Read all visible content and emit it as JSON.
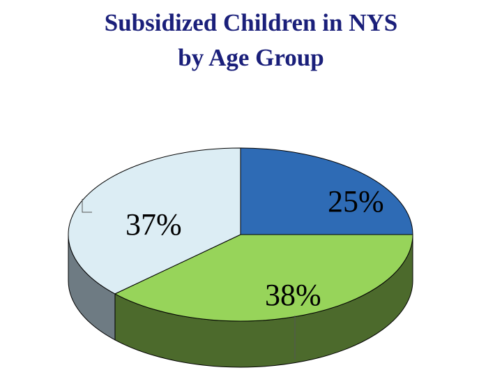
{
  "chart_data": {
    "type": "pie",
    "title": [
      "Subsidized Children in NYS",
      "by Age Group"
    ],
    "slices": [
      {
        "label": "25%",
        "value": 25,
        "color": "#2e6bb5",
        "side_color": "#1f4a80"
      },
      {
        "label": "38%",
        "value": 38,
        "color": "#97d45a",
        "side_color": "#4c6a2c"
      },
      {
        "label": "37%",
        "value": 37,
        "color": "#dcedf4",
        "side_color": "#6e7b83"
      }
    ],
    "style": "3d"
  }
}
